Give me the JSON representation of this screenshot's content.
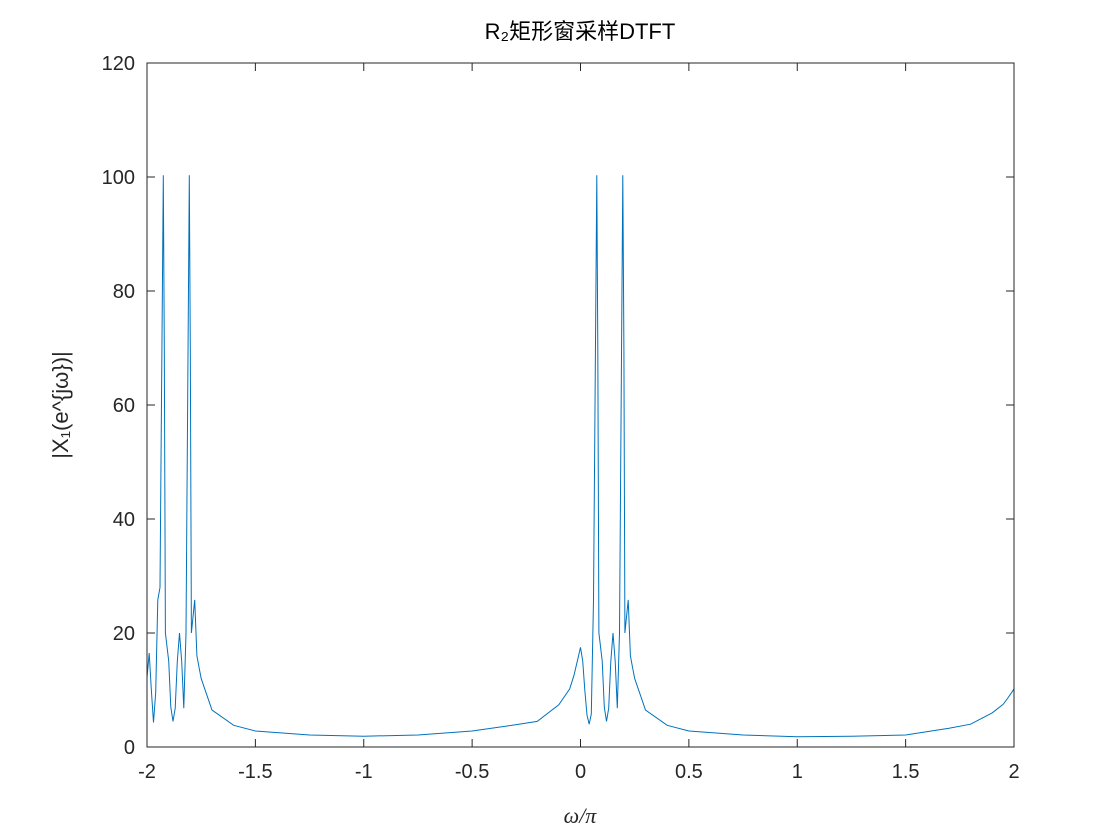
{
  "chart_data": {
    "type": "line",
    "title": "R₂矩形窗采样DTFT",
    "xlabel": "ω/π",
    "ylabel": "|X₁(e^{jω})|",
    "xlim": [
      -2,
      2
    ],
    "ylim": [
      0,
      120
    ],
    "xticks": [
      "-2",
      "-1.5",
      "-1",
      "-0.5",
      "0",
      "0.5",
      "1",
      "1.5",
      "2"
    ],
    "yticks": [
      "0",
      "20",
      "40",
      "60",
      "80",
      "100",
      "120"
    ],
    "grid": false,
    "series": [
      {
        "color": "#0072BD",
        "x": [
          -2.0,
          -1.99,
          -1.98,
          -1.97,
          -1.96,
          -1.95,
          -1.94,
          -1.925,
          -1.92,
          -1.915,
          -1.9,
          -1.89,
          -1.88,
          -1.87,
          -1.86,
          -1.85,
          -1.84,
          -1.83,
          -1.82,
          -1.805,
          -1.8,
          -1.795,
          -1.78,
          -1.77,
          -1.76,
          -1.75,
          -1.7,
          -1.6,
          -1.5,
          -1.25,
          -1.0,
          -0.75,
          -0.5,
          -0.3,
          -0.2,
          -0.1,
          -0.05,
          -0.03,
          -0.01,
          0.0,
          0.01,
          0.02,
          0.03,
          0.04,
          0.05,
          0.06,
          0.075,
          0.08,
          0.085,
          0.1,
          0.11,
          0.12,
          0.13,
          0.14,
          0.15,
          0.16,
          0.17,
          0.18,
          0.195,
          0.2,
          0.205,
          0.22,
          0.23,
          0.24,
          0.25,
          0.3,
          0.4,
          0.5,
          0.75,
          1.0,
          1.25,
          1.5,
          1.7,
          1.8,
          1.9,
          1.95,
          1.97,
          1.99,
          2.0
        ],
        "y": [
          12.2,
          16.5,
          10.1,
          4.3,
          9.6,
          25.8,
          28.0,
          100.3,
          70.0,
          20.0,
          15.1,
          7.0,
          4.5,
          6.8,
          15.0,
          20.0,
          15.0,
          6.8,
          20.0,
          100.3,
          70.0,
          20.0,
          25.8,
          16.0,
          14.0,
          12.0,
          6.5,
          3.8,
          2.8,
          2.1,
          1.9,
          2.1,
          2.8,
          3.9,
          4.5,
          7.4,
          10.2,
          12.6,
          15.8,
          17.5,
          15.1,
          10.0,
          5.6,
          4.0,
          5.8,
          25.8,
          100.3,
          70.0,
          20.0,
          15.1,
          7.0,
          4.5,
          6.8,
          15.0,
          20.0,
          15.0,
          6.8,
          20.0,
          100.3,
          70.0,
          20.0,
          25.8,
          16.0,
          14.0,
          12.0,
          6.5,
          3.8,
          2.8,
          2.1,
          1.8,
          1.9,
          2.1,
          3.3,
          4.0,
          6.0,
          7.5,
          8.5,
          9.6,
          10.2
        ]
      }
    ]
  }
}
